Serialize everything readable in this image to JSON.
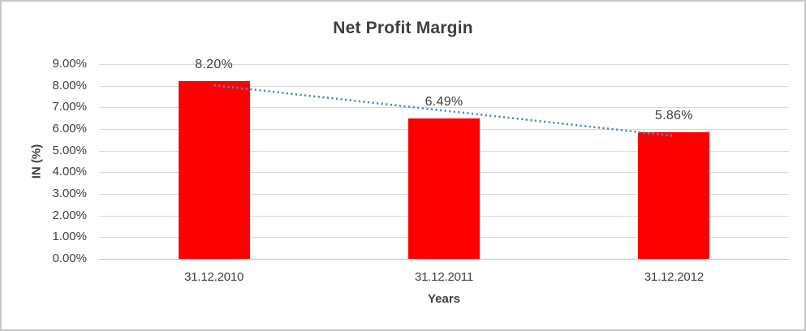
{
  "chart_data": {
    "type": "bar",
    "title": "Net Profit Margin",
    "xlabel": "Years",
    "ylabel": "IN (%)",
    "categories": [
      "31.12.2010",
      "31.12.2011",
      "31.12.2012"
    ],
    "values": [
      8.2,
      6.49,
      5.86
    ],
    "data_labels": [
      "8.20%",
      "6.49%",
      "5.86%"
    ],
    "y_ticks": [
      "9.00%",
      "8.00%",
      "7.00%",
      "6.00%",
      "5.00%",
      "4.00%",
      "3.00%",
      "2.00%",
      "1.00%",
      "0.00%"
    ],
    "ylim": [
      0,
      9
    ],
    "grid": true,
    "legend": "none",
    "trendline": {
      "type": "linear",
      "style": "dotted"
    },
    "colors": {
      "bar": "#ff0000",
      "trend": "#4a89d0",
      "gridline": "#d9d9d9",
      "axis_line": "#bfbfbf",
      "text": "#404040",
      "title": "#3f3f3f",
      "frame_border": "#c8c8c8",
      "background": "#ffffff"
    }
  }
}
